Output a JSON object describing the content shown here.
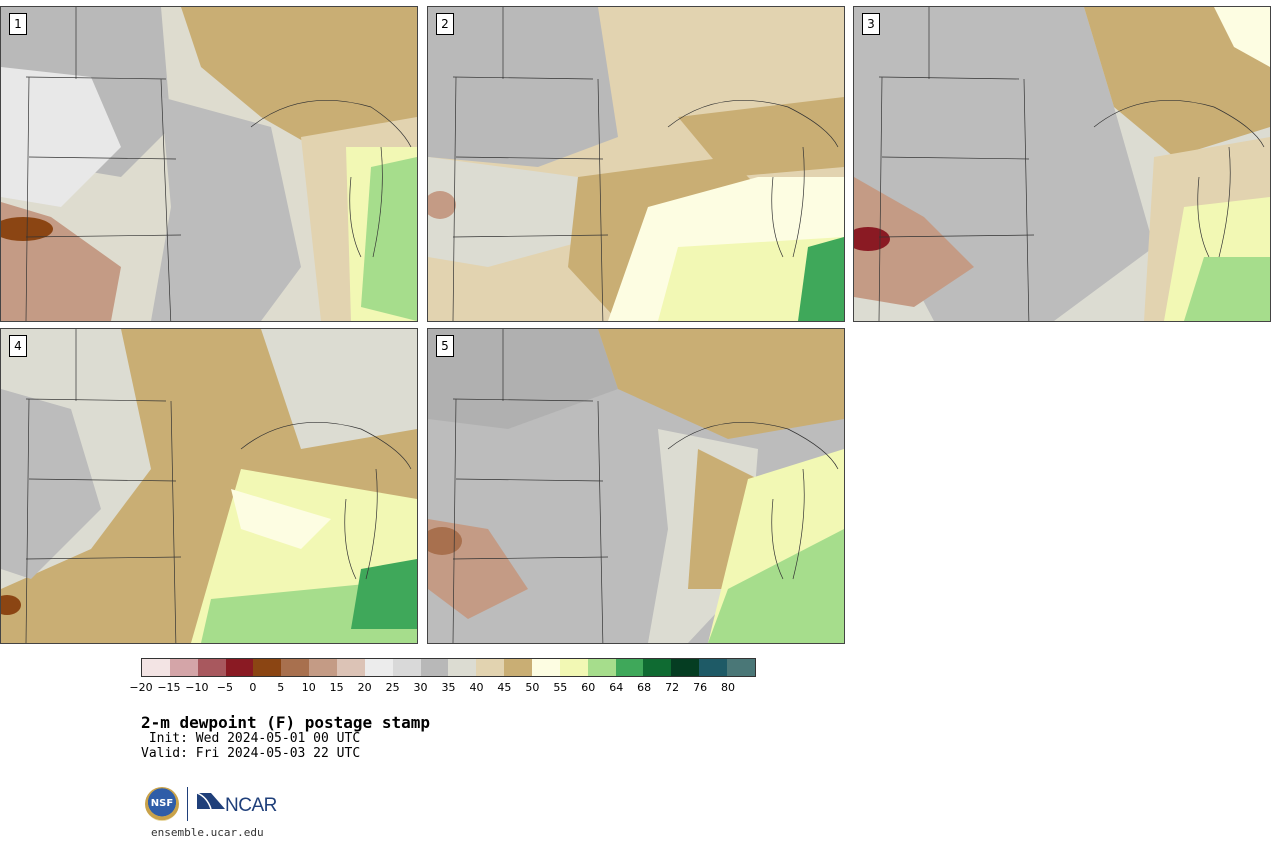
{
  "panels": [
    {
      "label": "1"
    },
    {
      "label": "2"
    },
    {
      "label": "3"
    },
    {
      "label": "4"
    },
    {
      "label": "5"
    }
  ],
  "colorbar": {
    "colors": [
      "#f3e4e4",
      "#d4a5a8",
      "#a8585e",
      "#8a1a23",
      "#8b4513",
      "#a8704e",
      "#c49b85",
      "#dcc3b6",
      "#ececec",
      "#d9d9d9",
      "#b8b8b8",
      "#dcdcd2",
      "#e2d3b0",
      "#c9ae74",
      "#fdfde2",
      "#f2f8b4",
      "#a6dd8c",
      "#3fa85a",
      "#0f6b32",
      "#053d22",
      "#1e5a66",
      "#4a7777"
    ],
    "tick_labels": [
      "−20",
      "−15",
      "−10",
      "−5",
      "0",
      "5",
      "10",
      "15",
      "20",
      "25",
      "30",
      "35",
      "40",
      "45",
      "50",
      "55",
      "60",
      "64",
      "68",
      "72",
      "76",
      "80"
    ]
  },
  "title": "2-m dewpoint (F) postage stamp",
  "init": " Init: Wed 2024-05-01 00 UTC",
  "valid": "Valid: Fri 2024-05-03 22 UTC",
  "logos": {
    "nsf": "NSF",
    "ncar": "NCAR"
  },
  "url": "ensemble.ucar.edu"
}
